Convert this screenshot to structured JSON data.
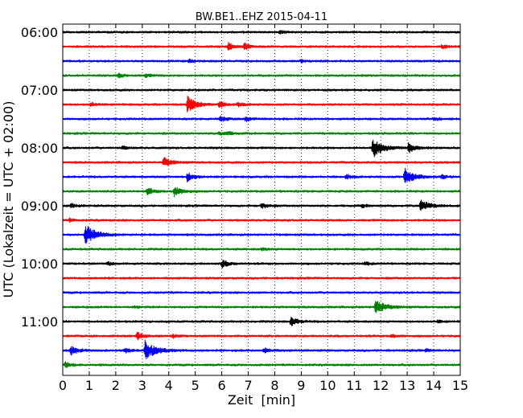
{
  "chart_data": {
    "type": "line",
    "title": "BW.BE1..EHZ 2015-04-11",
    "xlabel": "Zeit  [min]",
    "ylabel": "UTC (Lokalzeit = UTC + 02:00)",
    "xlim": [
      0,
      15
    ],
    "x_ticks": [
      0,
      1,
      2,
      3,
      4,
      5,
      6,
      7,
      8,
      9,
      10,
      11,
      12,
      13,
      14,
      15
    ],
    "y_tick_labels": [
      "06:00",
      "07:00",
      "08:00",
      "09:00",
      "10:00",
      "11:00"
    ],
    "grid": "vertical dotted",
    "trace_interval_min": 15,
    "colors": [
      "#000000",
      "#ff0000",
      "#0000ff",
      "#008000"
    ],
    "traces": [
      {
        "start": "06:00",
        "color": "#000000",
        "events": [
          {
            "t": 8.2,
            "amp": 0.15
          }
        ]
      },
      {
        "start": "06:15",
        "color": "#ff0000",
        "events": [
          {
            "t": 6.25,
            "amp": 0.35
          },
          {
            "t": 6.85,
            "amp": 0.25
          },
          {
            "t": 14.3,
            "amp": 0.2
          }
        ]
      },
      {
        "start": "06:30",
        "color": "#0000ff",
        "events": [
          {
            "t": 4.75,
            "amp": 0.15
          },
          {
            "t": 9.0,
            "amp": 0.1
          }
        ]
      },
      {
        "start": "06:45",
        "color": "#008000",
        "events": [
          {
            "t": 2.1,
            "amp": 0.2
          },
          {
            "t": 3.1,
            "amp": 0.15
          }
        ]
      },
      {
        "start": "07:00",
        "color": "#000000",
        "events": []
      },
      {
        "start": "07:15",
        "color": "#ff0000",
        "events": [
          {
            "t": 1.05,
            "amp": 0.2
          },
          {
            "t": 4.7,
            "amp": 0.7
          },
          {
            "t": 5.9,
            "amp": 0.25
          },
          {
            "t": 6.6,
            "amp": 0.2
          }
        ]
      },
      {
        "start": "07:30",
        "color": "#0000ff",
        "events": [
          {
            "t": 5.95,
            "amp": 0.25
          },
          {
            "t": 6.9,
            "amp": 0.2
          },
          {
            "t": 14.0,
            "amp": 0.15
          }
        ]
      },
      {
        "start": "07:45",
        "color": "#008000",
        "events": [
          {
            "t": 5.9,
            "amp": 0.2
          },
          {
            "t": 6.2,
            "amp": 0.15
          }
        ]
      },
      {
        "start": "08:00",
        "color": "#000000",
        "events": [
          {
            "t": 2.25,
            "amp": 0.15
          },
          {
            "t": 11.7,
            "amp": 0.85
          },
          {
            "t": 13.05,
            "amp": 0.45
          }
        ]
      },
      {
        "start": "08:15",
        "color": "#ff0000",
        "events": [
          {
            "t": 3.8,
            "amp": 0.45
          }
        ]
      },
      {
        "start": "08:30",
        "color": "#0000ff",
        "events": [
          {
            "t": 4.7,
            "amp": 0.4
          },
          {
            "t": 10.7,
            "amp": 0.2
          },
          {
            "t": 12.9,
            "amp": 0.75
          },
          {
            "t": 14.3,
            "amp": 0.15
          }
        ]
      },
      {
        "start": "08:45",
        "color": "#008000",
        "events": [
          {
            "t": 3.2,
            "amp": 0.3
          },
          {
            "t": 4.2,
            "amp": 0.45
          }
        ]
      },
      {
        "start": "09:00",
        "color": "#000000",
        "events": [
          {
            "t": 0.3,
            "amp": 0.2
          },
          {
            "t": 7.5,
            "amp": 0.25
          },
          {
            "t": 11.3,
            "amp": 0.15
          },
          {
            "t": 13.5,
            "amp": 0.6
          }
        ]
      },
      {
        "start": "09:15",
        "color": "#ff0000",
        "events": [
          {
            "t": 0.25,
            "amp": 0.15
          }
        ]
      },
      {
        "start": "09:30",
        "color": "#0000ff",
        "events": [
          {
            "t": 0.85,
            "amp": 0.9
          }
        ]
      },
      {
        "start": "09:45",
        "color": "#008000",
        "events": [
          {
            "t": 7.5,
            "amp": 0.1
          }
        ]
      },
      {
        "start": "10:00",
        "color": "#000000",
        "events": [
          {
            "t": 1.7,
            "amp": 0.15
          },
          {
            "t": 6.0,
            "amp": 0.35
          },
          {
            "t": 11.4,
            "amp": 0.15
          }
        ]
      },
      {
        "start": "10:15",
        "color": "#ff0000",
        "events": []
      },
      {
        "start": "10:30",
        "color": "#0000ff",
        "events": []
      },
      {
        "start": "10:45",
        "color": "#008000",
        "events": [
          {
            "t": 2.7,
            "amp": 0.1
          },
          {
            "t": 11.8,
            "amp": 0.7
          }
        ]
      },
      {
        "start": "11:00",
        "color": "#000000",
        "events": [
          {
            "t": 8.6,
            "amp": 0.4
          },
          {
            "t": 14.15,
            "amp": 0.1
          }
        ]
      },
      {
        "start": "11:15",
        "color": "#ff0000",
        "events": [
          {
            "t": 2.8,
            "amp": 0.35
          },
          {
            "t": 4.15,
            "amp": 0.15
          },
          {
            "t": 12.4,
            "amp": 0.15
          }
        ]
      },
      {
        "start": "11:30",
        "color": "#0000ff",
        "events": [
          {
            "t": 0.3,
            "amp": 0.4
          },
          {
            "t": 2.35,
            "amp": 0.2
          },
          {
            "t": 3.1,
            "amp": 0.9
          },
          {
            "t": 7.6,
            "amp": 0.25
          },
          {
            "t": 13.7,
            "amp": 0.1
          }
        ]
      },
      {
        "start": "11:45",
        "color": "#008000",
        "events": [
          {
            "t": 0.1,
            "amp": 0.25
          }
        ]
      }
    ]
  }
}
